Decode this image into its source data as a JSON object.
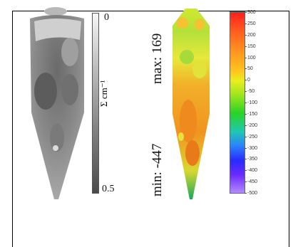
{
  "grayscale_panel": {
    "scale_top": "0",
    "scale_bottom": "0.5",
    "unit": "Σ cm⁻¹"
  },
  "color_panel": {
    "max_label": "max: 169",
    "min_label": "min: -447",
    "scale_ticks": [
      "300",
      "250",
      "200",
      "150",
      "100",
      "50",
      "0",
      "-50",
      "-100",
      "-150",
      "-200",
      "-250",
      "-300",
      "-350",
      "-400",
      "-450",
      "-500"
    ]
  }
}
